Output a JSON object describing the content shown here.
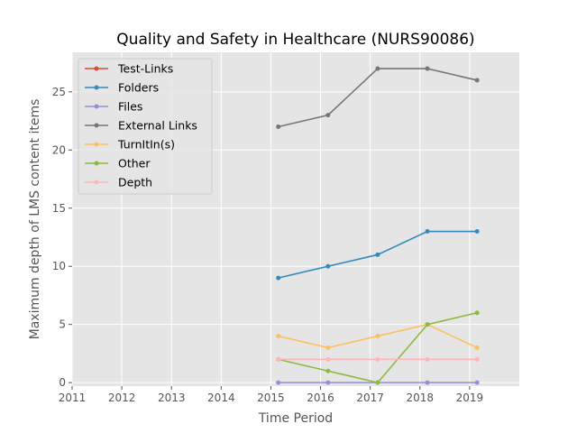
{
  "chart_data": {
    "type": "line",
    "title": "Quality and Safety in Healthcare (NURS90086)",
    "xlabel": "Time Period",
    "ylabel": "Maximum depth of LMS content items",
    "xlim": [
      2011,
      2020
    ],
    "ylim": [
      -0.3,
      28.4
    ],
    "x_ticks": [
      "2011",
      "2012",
      "2013",
      "2014",
      "2015",
      "2016",
      "2017",
      "2018",
      "2019"
    ],
    "y_ticks": [
      "0",
      "5",
      "10",
      "15",
      "20",
      "25"
    ],
    "grid": true,
    "legend_position": "top-left",
    "x": [
      2015.15,
      2016.15,
      2017.15,
      2018.15,
      2019.15
    ],
    "series": [
      {
        "name": "Test-Links",
        "color": "#e24a33",
        "values": [
          null,
          null,
          null,
          null,
          null
        ]
      },
      {
        "name": "Folders",
        "color": "#348abd",
        "values": [
          9,
          10,
          11,
          13,
          13
        ]
      },
      {
        "name": "Files",
        "color": "#988ed5",
        "values": [
          0,
          0,
          0,
          0,
          0
        ]
      },
      {
        "name": "External Links",
        "color": "#777777",
        "values": [
          22,
          23,
          27,
          27,
          26
        ]
      },
      {
        "name": "TurnItIn(s)",
        "color": "#fbc15e",
        "values": [
          4,
          3,
          4,
          5,
          3
        ]
      },
      {
        "name": "Other",
        "color": "#8eba42",
        "values": [
          2,
          1,
          0,
          5,
          6
        ]
      },
      {
        "name": "Depth",
        "color": "#ffb5b8",
        "values": [
          2,
          2,
          2,
          2,
          2
        ]
      }
    ]
  }
}
